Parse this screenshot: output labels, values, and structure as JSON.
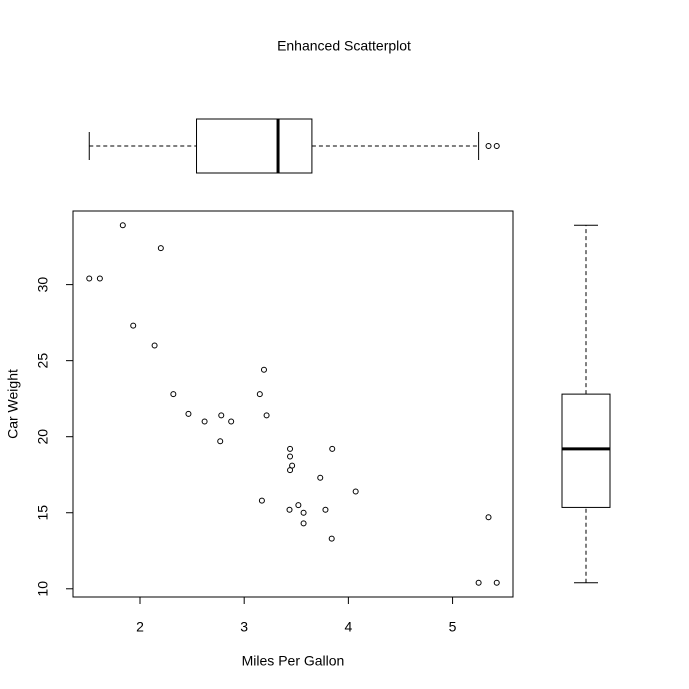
{
  "chart_data": [
    {
      "type": "scatter",
      "title": "Enhanced Scatterplot",
      "x_label": "Miles Per Gallon",
      "y_label": "Car Weight",
      "x": [
        2.62,
        2.875,
        2.32,
        3.215,
        3.44,
        3.46,
        3.57,
        3.19,
        3.15,
        3.44,
        3.44,
        4.07,
        3.73,
        3.78,
        5.25,
        5.424,
        5.345,
        2.2,
        1.615,
        1.835,
        2.465,
        3.52,
        3.435,
        3.84,
        3.845,
        1.935,
        2.14,
        1.513,
        3.17,
        2.77,
        3.57,
        2.78
      ],
      "y": [
        21.0,
        21.0,
        22.8,
        21.4,
        18.7,
        18.1,
        14.3,
        24.4,
        22.8,
        19.2,
        17.8,
        16.4,
        17.3,
        15.2,
        10.4,
        10.4,
        14.7,
        32.4,
        30.4,
        33.9,
        21.5,
        15.5,
        15.2,
        13.3,
        19.2,
        27.3,
        26.0,
        30.4,
        15.8,
        19.7,
        15.0,
        21.4
      ],
      "xlim": [
        1.357,
        5.58
      ],
      "ylim": [
        9.46,
        34.84
      ],
      "xticks": [
        2,
        3,
        4,
        5
      ],
      "yticks": [
        10,
        15,
        20,
        25,
        30
      ]
    },
    {
      "type": "boxplot",
      "orientation": "horizontal",
      "whisker_low": 1.513,
      "q1": 2.5425,
      "median": 3.325,
      "q3": 3.65,
      "whisker_high": 5.25,
      "outliers": [
        5.345,
        5.424
      ],
      "xlim": [
        1.357,
        5.58
      ]
    },
    {
      "type": "boxplot",
      "orientation": "vertical",
      "whisker_low": 10.4,
      "q1": 15.35,
      "median": 19.2,
      "q3": 22.8,
      "whisker_high": 33.9,
      "outliers": [],
      "ylim": [
        9.46,
        34.84
      ]
    }
  ]
}
